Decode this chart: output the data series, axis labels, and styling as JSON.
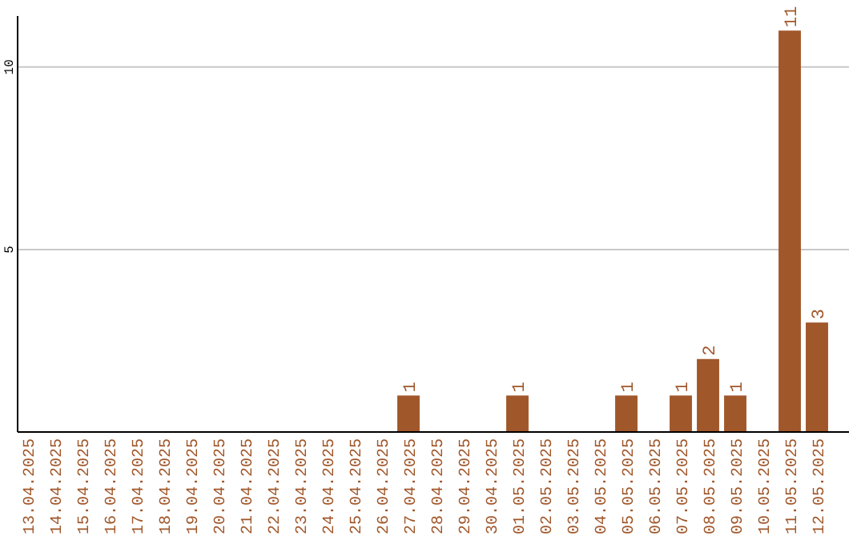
{
  "chart_data": {
    "type": "bar",
    "categories": [
      "13.04.2025",
      "14.04.2025",
      "15.04.2025",
      "16.04.2025",
      "17.04.2025",
      "18.04.2025",
      "19.04.2025",
      "20.04.2025",
      "21.04.2025",
      "22.04.2025",
      "23.04.2025",
      "24.04.2025",
      "25.04.2025",
      "26.04.2025",
      "27.04.2025",
      "28.04.2025",
      "29.04.2025",
      "30.04.2025",
      "01.05.2025",
      "02.05.2025",
      "03.05.2025",
      "04.05.2025",
      "05.05.2025",
      "06.05.2025",
      "07.05.2025",
      "08.05.2025",
      "09.05.2025",
      "10.05.2025",
      "11.05.2025",
      "12.05.2025"
    ],
    "values": [
      0,
      0,
      0,
      0,
      0,
      0,
      0,
      0,
      0,
      0,
      0,
      0,
      0,
      0,
      1,
      0,
      0,
      0,
      1,
      0,
      0,
      0,
      1,
      0,
      1,
      2,
      1,
      0,
      11,
      3
    ],
    "value_labels": [
      null,
      null,
      null,
      null,
      null,
      null,
      null,
      null,
      null,
      null,
      null,
      null,
      null,
      null,
      "1",
      null,
      null,
      null,
      "1",
      null,
      null,
      null,
      "1",
      null,
      "1",
      "2",
      "1",
      null,
      "11",
      "3"
    ],
    "color": "#a0572a",
    "ylim": [
      0,
      11.4
    ],
    "yticks": [
      5,
      10
    ],
    "grid": "y"
  }
}
